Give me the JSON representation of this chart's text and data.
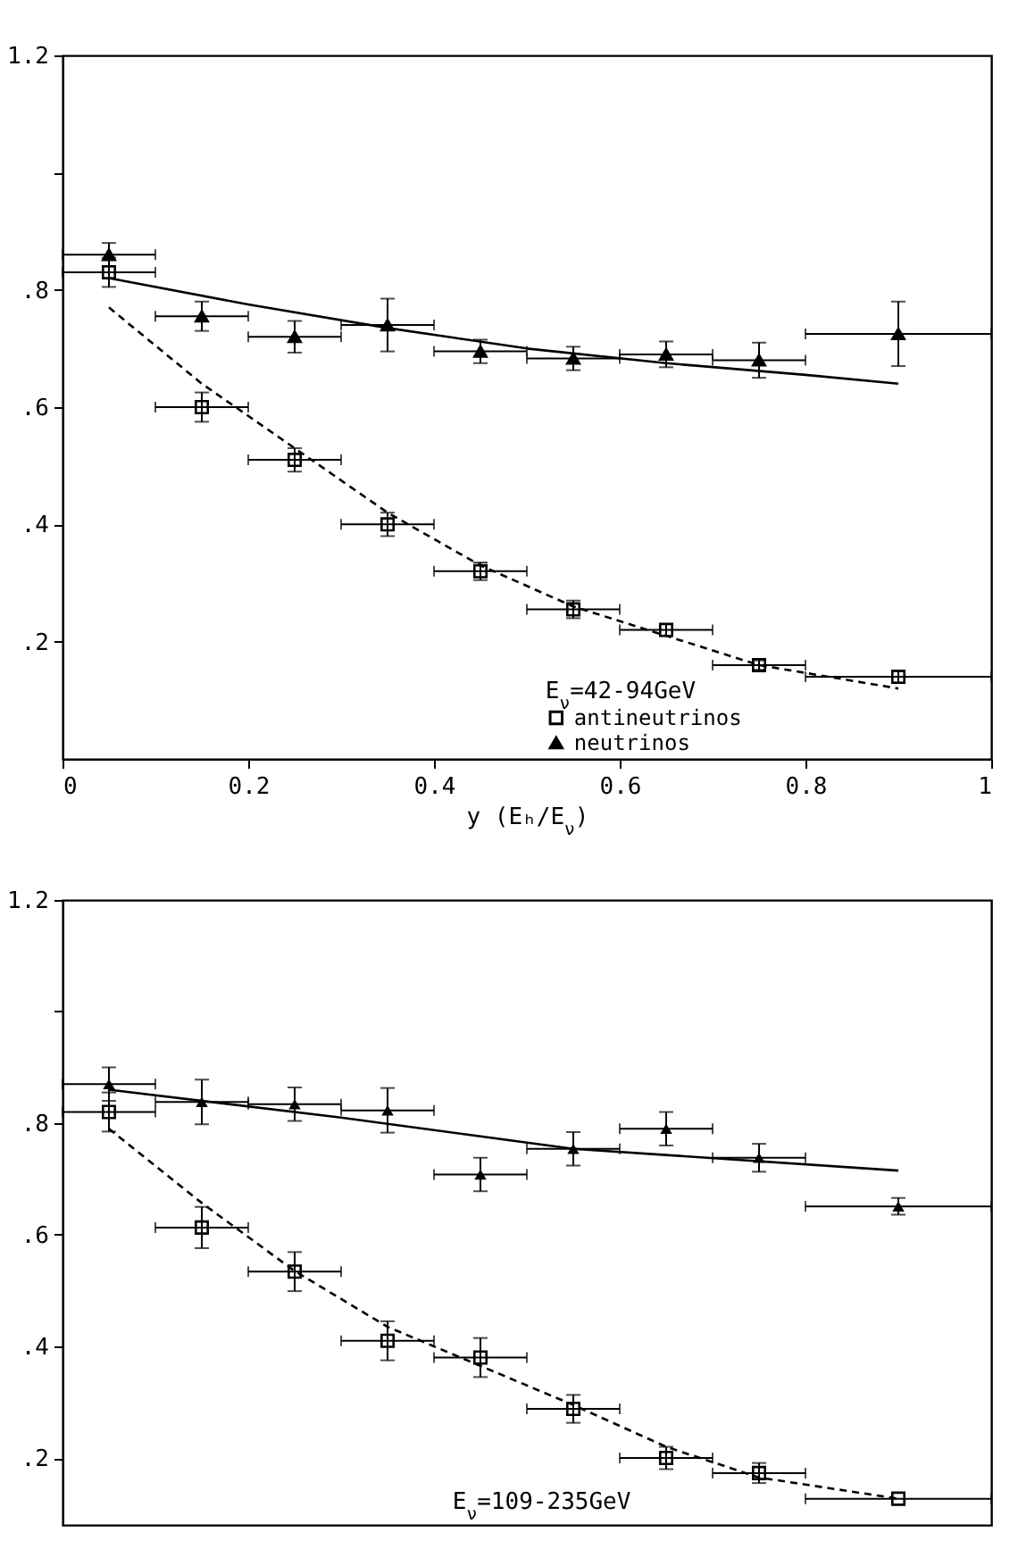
{
  "chart_data": [
    {
      "type": "scatter",
      "xlabel": "y (Eₕ/E$_{ν}$)",
      "legend_title": "E$_{ν}$=42-94GeV",
      "legend": "bottom right",
      "xlim": [
        0,
        1
      ],
      "ylim": [
        0,
        1.2
      ],
      "xticks": [
        0,
        0.2,
        0.4,
        0.6,
        0.8,
        1
      ],
      "yticks": [
        {
          "value": 0.2,
          "label": ".2"
        },
        {
          "value": 0.4,
          "label": ".4"
        },
        {
          "value": 0.6,
          "label": ".6"
        },
        {
          "value": 0.8,
          "label": ".8"
        },
        {
          "value": 1.0,
          "label": null
        },
        1.2
      ],
      "series": [
        {
          "name": "antineutrinos",
          "type": "scatter",
          "marker": "square",
          "color": "#000000",
          "x": [
            0.05,
            0.15,
            0.25,
            0.35,
            0.45,
            0.55,
            0.65,
            0.75,
            0.9
          ],
          "values": [
            0.83,
            0.6,
            0.51,
            0.4,
            0.32,
            0.255,
            0.22,
            0.16,
            0.14
          ],
          "errors": [
            0.025,
            0.025,
            0.02,
            0.02,
            0.015,
            0.015,
            0.01,
            0.008,
            0.01
          ],
          "xerrors": [
            0.05,
            0.05,
            0.05,
            0.05,
            0.05,
            0.05,
            0.05,
            0.05,
            0.1
          ]
        },
        {
          "name": "neutrinos",
          "type": "scatter",
          "marker": "triangle",
          "color": "#000000",
          "x": [
            0.05,
            0.15,
            0.25,
            0.35,
            0.45,
            0.55,
            0.65,
            0.75,
            0.9
          ],
          "values": [
            0.86,
            0.755,
            0.72,
            0.74,
            0.695,
            0.683,
            0.69,
            0.68,
            0.725
          ],
          "errors": [
            0.02,
            0.025,
            0.027,
            0.045,
            0.02,
            0.02,
            0.022,
            0.03,
            0.055
          ],
          "xerrors": [
            0.05,
            0.05,
            0.05,
            0.05,
            0.05,
            0.05,
            0.05,
            0.05,
            0.1
          ]
        },
        {
          "type": "line",
          "line_style": "solid",
          "color": "#000000",
          "x": [
            0.05,
            0.2,
            0.35,
            0.5,
            0.65,
            0.8,
            0.9
          ],
          "values": [
            0.82,
            0.775,
            0.735,
            0.7,
            0.675,
            0.655,
            0.64
          ]
        },
        {
          "type": "line",
          "line_style": "dashed",
          "color": "#000000",
          "x": [
            0.05,
            0.15,
            0.25,
            0.35,
            0.45,
            0.55,
            0.65,
            0.75,
            0.9
          ],
          "values": [
            0.77,
            0.64,
            0.53,
            0.42,
            0.33,
            0.26,
            0.21,
            0.16,
            0.12
          ]
        }
      ]
    },
    {
      "type": "scatter",
      "annotations": [
        "E$_{ν}$=109-235GeV"
      ],
      "tick_labels": "y",
      "xlim": [
        0,
        1
      ],
      "ylim": [
        0.08,
        1.2
      ],
      "yticks": [
        {
          "value": 0.2,
          "label": ".2"
        },
        {
          "value": 0.4,
          "label": ".4"
        },
        {
          "value": 0.6,
          "label": ".6"
        },
        {
          "value": 0.8,
          "label": ".8"
        },
        {
          "value": 1.0,
          "label": null
        },
        1.2
      ],
      "series": [
        {
          "type": "scatter",
          "marker": "square",
          "color": "#000000",
          "x": [
            0.05,
            0.15,
            0.25,
            0.35,
            0.45,
            0.55,
            0.65,
            0.75,
            0.9
          ],
          "values": [
            0.82,
            0.613,
            0.534,
            0.41,
            0.38,
            0.288,
            0.2,
            0.173,
            0.127
          ],
          "errors": [
            0.035,
            0.037,
            0.035,
            0.035,
            0.035,
            0.025,
            0.02,
            0.018,
            null
          ],
          "xerrors": [
            0.05,
            0.05,
            0.05,
            0.05,
            0.05,
            0.05,
            0.05,
            0.05,
            0.1
          ]
        },
        {
          "type": "scatter",
          "marker": "triangle",
          "color": "#000000",
          "x": [
            0.05,
            0.15,
            0.25,
            0.35,
            0.45,
            0.55,
            0.65,
            0.75,
            0.9
          ],
          "values": [
            0.87,
            0.838,
            0.834,
            0.823,
            0.708,
            0.754,
            0.79,
            0.738,
            0.651
          ],
          "errors": [
            0.03,
            0.04,
            0.03,
            0.04,
            0.03,
            0.03,
            0.03,
            0.025,
            0.015
          ],
          "xerrors": [
            0.05,
            0.05,
            0.05,
            0.05,
            0.05,
            0.05,
            0.05,
            0.05,
            0.1
          ]
        },
        {
          "type": "line",
          "line_style": "solid",
          "color": "#000000",
          "x": [
            0.05,
            0.3,
            0.55,
            0.9
          ],
          "values": [
            0.86,
            0.81,
            0.754,
            0.715
          ]
        },
        {
          "type": "line",
          "line_style": "dashed",
          "color": "#000000",
          "x": [
            0.05,
            0.15,
            0.25,
            0.35,
            0.45,
            0.55,
            0.65,
            0.75,
            0.9
          ],
          "values": [
            0.79,
            0.657,
            0.535,
            0.435,
            0.365,
            0.295,
            0.22,
            0.165,
            0.127
          ]
        }
      ]
    }
  ]
}
